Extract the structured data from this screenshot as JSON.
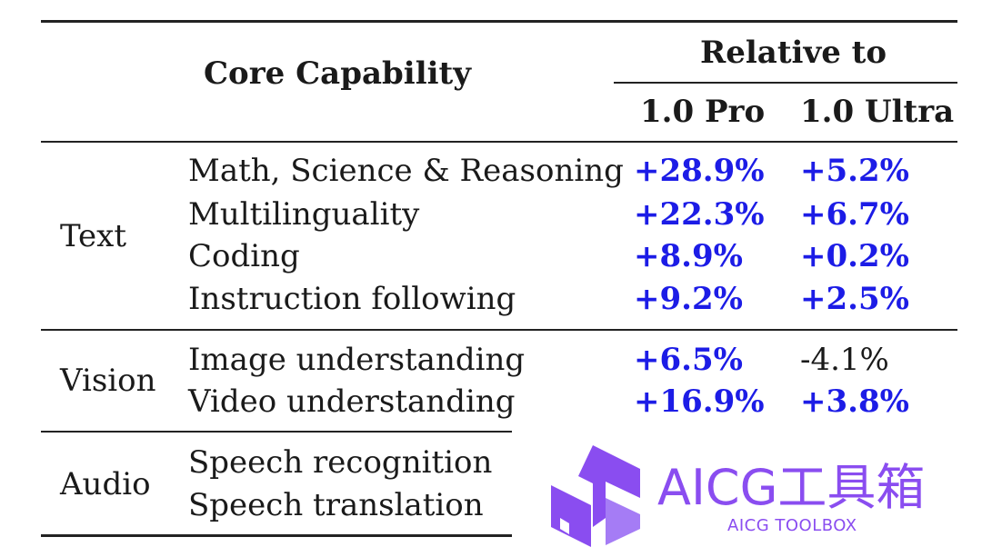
{
  "header": {
    "core_capability": "Core Capability",
    "relative_to": "Relative to",
    "col_pro": "1.0 Pro",
    "col_ultra": "1.0 Ultra"
  },
  "groups": [
    {
      "category": "Text",
      "rows": [
        {
          "capability": "Math, Science & Reasoning",
          "pro": "+28.9%",
          "ultra": "+5.2%"
        },
        {
          "capability": "Multilinguality",
          "pro": "+22.3%",
          "ultra": "+6.7%"
        },
        {
          "capability": "Coding",
          "pro": "+8.9%",
          "ultra": "+0.2%"
        },
        {
          "capability": "Instruction following",
          "pro": "+9.2%",
          "ultra": "+2.5%"
        }
      ]
    },
    {
      "category": "Vision",
      "rows": [
        {
          "capability": "Image understanding",
          "pro": "+6.5%",
          "ultra": "-4.1%"
        },
        {
          "capability": "Video understanding",
          "pro": "+16.9%",
          "ultra": "+3.8%"
        }
      ]
    },
    {
      "category": "Audio",
      "rows": [
        {
          "capability": "Speech recognition",
          "pro": "",
          "ultra": ""
        },
        {
          "capability": "Speech translation",
          "pro": "",
          "ultra": ""
        }
      ]
    }
  ],
  "watermark": {
    "title": "AICG工具箱",
    "subtitle": "AICG TOOLBOX",
    "color": "#8a4df0"
  },
  "colors": {
    "positive_value": "#1c1ce6",
    "negative_value": "#1a1a1a"
  }
}
